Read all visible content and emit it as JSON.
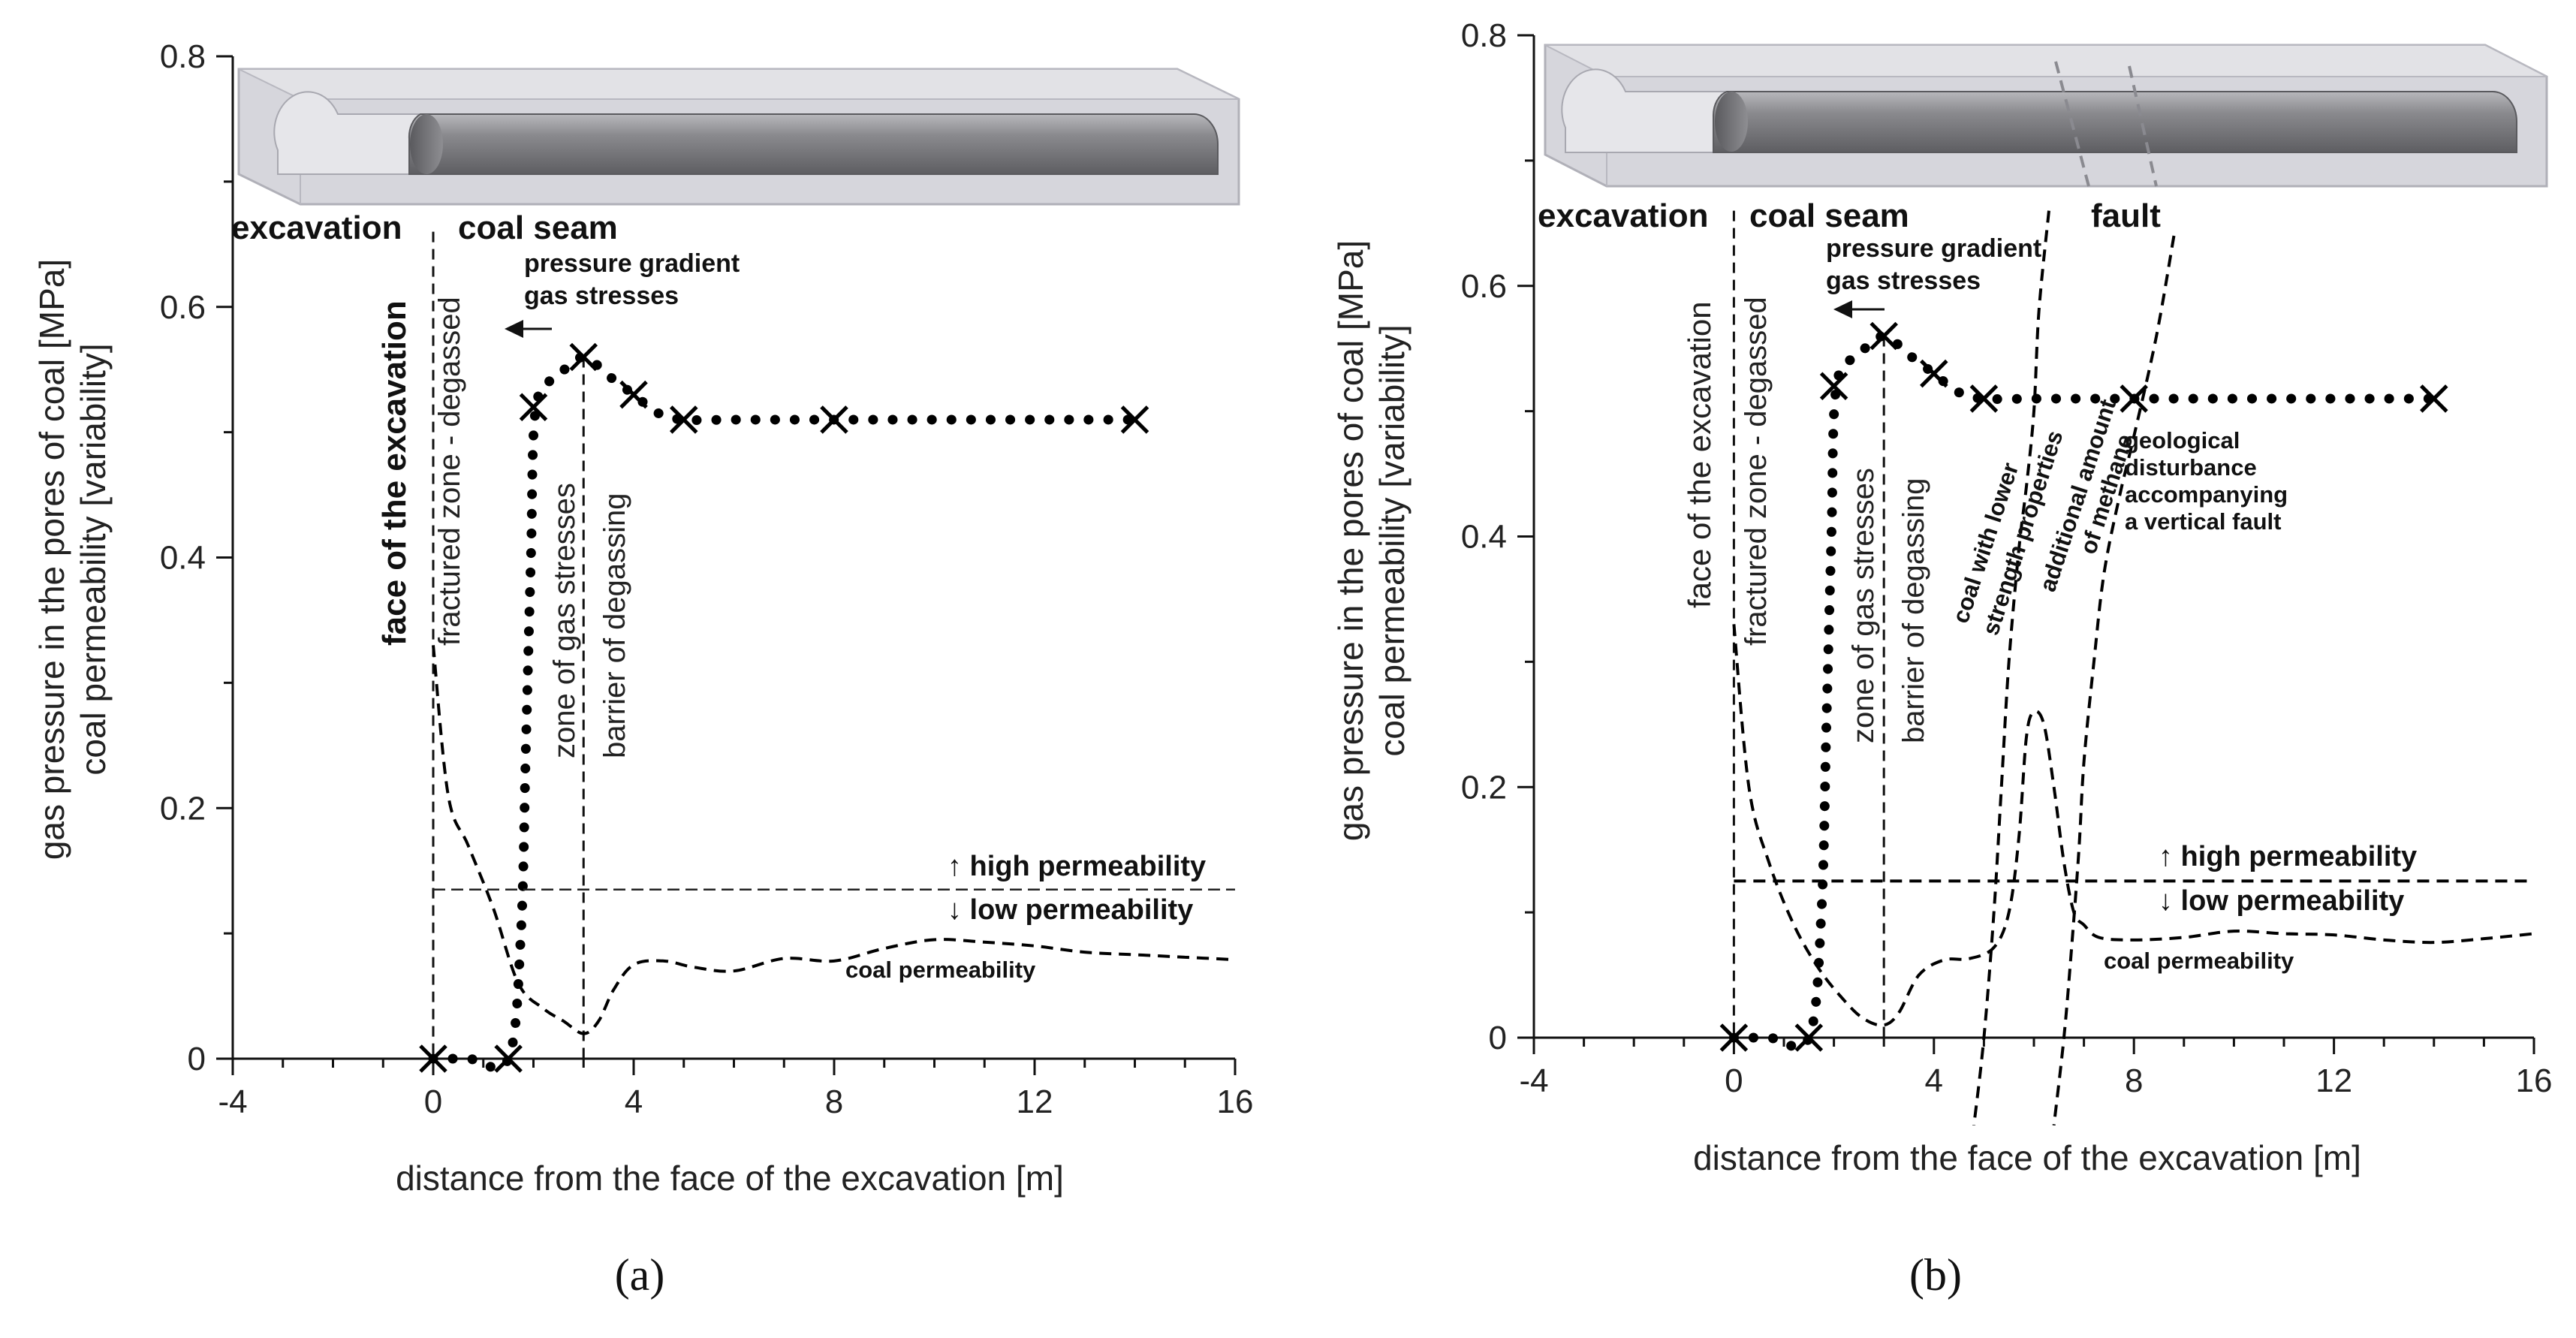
{
  "chart_data": [
    {
      "panel": "a",
      "caption": "(a)",
      "type": "line",
      "xlabel": "distance from the face of the excavation [m]",
      "ylabel_lines": [
        "gas pressure in the pores of coal [MPa]",
        "coal permeability [variability]"
      ],
      "xlim": [
        -4,
        16
      ],
      "ylim": [
        0,
        0.8
      ],
      "x_ticks": [
        -4,
        0,
        4,
        8,
        12,
        16
      ],
      "y_ticks": [
        0,
        0.2,
        0.4,
        0.6,
        0.8
      ],
      "y_tick_labels": [
        "0",
        "0.2",
        "0.4",
        "0.6",
        "0.8"
      ],
      "series": [
        {
          "name": "gas pressure",
          "style": "dotted",
          "x": [
            0,
            0.7,
            1.5,
            1.75,
            1.85,
            1.95,
            2.05,
            2.5,
            3.0,
            3.5,
            4.0,
            4.5,
            5.0,
            6.0,
            7.0,
            8.0,
            9.0,
            10.0,
            11.0,
            12.0,
            13.0,
            14.0
          ],
          "y": [
            0,
            0,
            0,
            0.1,
            0.25,
            0.4,
            0.52,
            0.545,
            0.56,
            0.545,
            0.53,
            0.515,
            0.51,
            0.51,
            0.51,
            0.51,
            0.51,
            0.51,
            0.51,
            0.51,
            0.51,
            0.51
          ]
        },
        {
          "name": "measurement points",
          "style": "x-markers",
          "x": [
            0,
            1.5,
            2.0,
            3.0,
            4.0,
            5.0,
            8.0,
            14.0
          ],
          "y": [
            0,
            0,
            0.52,
            0.56,
            0.53,
            0.51,
            0.51,
            0.51
          ]
        },
        {
          "name": "coal permeability",
          "style": "dashed",
          "x": [
            0,
            0.3,
            0.7,
            1.2,
            1.7,
            2.2,
            2.6,
            3.0,
            3.3,
            3.6,
            4.0,
            4.6,
            5.2,
            6.0,
            7.0,
            8.0,
            9.0,
            10.0,
            11.0,
            12.0,
            13.0,
            14.0,
            15.0,
            16.0
          ],
          "y": [
            0.33,
            0.21,
            0.17,
            0.12,
            0.06,
            0.04,
            0.03,
            0.02,
            0.03,
            0.055,
            0.075,
            0.078,
            0.073,
            0.07,
            0.08,
            0.078,
            0.088,
            0.095,
            0.093,
            0.09,
            0.085,
            0.083,
            0.081,
            0.079
          ]
        },
        {
          "name": "permeability threshold",
          "style": "thin-dashed",
          "x": [
            0,
            16
          ],
          "y": [
            0.135,
            0.135
          ]
        }
      ],
      "vlines": [
        {
          "name": "face of the excavation",
          "x": 0,
          "y_top": 0.66
        },
        {
          "name": "barrier of degassing",
          "x": 3.0,
          "y_top": 0.56
        }
      ],
      "labels": {
        "excavation": "excavation",
        "coal_seam": "coal seam",
        "pressure_gradient": "pressure gradient",
        "gas_stresses": "gas stresses",
        "face": "face of the excavation",
        "fractured": "fractured zone - degassed",
        "zone_gas": "zone of gas stresses",
        "barrier": "barrier of degassing",
        "high_perm": "↑ high permeability",
        "low_perm": "↓ low permeability",
        "coal_perm": "coal permeability"
      }
    },
    {
      "panel": "b",
      "caption": "(b)",
      "type": "line",
      "xlabel": "distance from the face of the excavation [m]",
      "ylabel_lines": [
        "gas pressure in the pores of coal [MPa]",
        "coal permeability [variability]"
      ],
      "xlim": [
        -4,
        16
      ],
      "ylim": [
        0,
        0.8
      ],
      "x_ticks": [
        -4,
        0,
        4,
        8,
        12,
        16
      ],
      "y_ticks": [
        0,
        0.2,
        0.4,
        0.6,
        0.8
      ],
      "y_tick_labels": [
        "0",
        "0.2",
        "0.4",
        "0.6",
        "0.8"
      ],
      "series": [
        {
          "name": "gas pressure",
          "style": "dotted",
          "x": [
            0,
            0.7,
            1.5,
            1.75,
            1.85,
            1.95,
            2.05,
            2.5,
            3.0,
            3.5,
            4.0,
            4.5,
            5.0,
            6.0,
            7.0,
            8.0,
            9.0,
            10.0,
            11.0,
            12.0,
            13.0,
            14.0
          ],
          "y": [
            0,
            0,
            0,
            0.1,
            0.25,
            0.4,
            0.52,
            0.545,
            0.56,
            0.545,
            0.53,
            0.515,
            0.51,
            0.51,
            0.51,
            0.51,
            0.51,
            0.51,
            0.51,
            0.51,
            0.51,
            0.51
          ]
        },
        {
          "name": "measurement points",
          "style": "x-markers",
          "x": [
            0,
            1.5,
            2.0,
            3.0,
            4.0,
            5.0,
            8.0,
            14.0
          ],
          "y": [
            0,
            0,
            0.52,
            0.56,
            0.53,
            0.51,
            0.51,
            0.51
          ]
        },
        {
          "name": "coal permeability",
          "style": "dashed",
          "x": [
            0,
            0.3,
            0.7,
            1.2,
            1.7,
            2.2,
            2.6,
            3.0,
            3.3,
            3.7,
            4.2,
            4.7,
            5.2,
            5.5,
            5.7,
            5.85,
            6.0,
            6.2,
            6.4,
            6.6,
            6.8,
            7.0,
            7.3,
            8.0,
            9.0,
            10.0,
            11.0,
            12.0,
            13.0,
            14.0,
            15.0,
            16.0
          ],
          "y": [
            0.33,
            0.2,
            0.14,
            0.09,
            0.055,
            0.03,
            0.015,
            0.01,
            0.02,
            0.05,
            0.062,
            0.063,
            0.072,
            0.1,
            0.16,
            0.24,
            0.26,
            0.25,
            0.2,
            0.14,
            0.1,
            0.09,
            0.08,
            0.078,
            0.08,
            0.085,
            0.083,
            0.082,
            0.078,
            0.076,
            0.079,
            0.083
          ]
        },
        {
          "name": "permeability threshold",
          "style": "dashed",
          "x": [
            0,
            16
          ],
          "y": [
            0.125,
            0.125
          ]
        },
        {
          "name": "fault trace left",
          "style": "dashed",
          "x": [
            6.3,
            6.1,
            6.0,
            5.85,
            5.7,
            5.5,
            5.35,
            5.2,
            5.0,
            4.8
          ],
          "y": [
            0.66,
            0.58,
            0.5,
            0.44,
            0.39,
            0.3,
            0.2,
            0.1,
            0.0,
            -0.07
          ]
        },
        {
          "name": "fault trace right",
          "style": "dashed",
          "x": [
            8.8,
            8.45,
            8.0,
            7.7,
            7.4,
            7.2,
            7.0,
            6.9,
            6.75,
            6.6,
            6.4
          ],
          "y": [
            0.64,
            0.56,
            0.48,
            0.43,
            0.37,
            0.3,
            0.22,
            0.15,
            0.07,
            0.0,
            -0.07
          ]
        }
      ],
      "vlines": [
        {
          "name": "face of the excavation",
          "x": 0,
          "y_top": 0.66
        },
        {
          "name": "barrier of degassing",
          "x": 3.0,
          "y_top": 0.56
        }
      ],
      "labels": {
        "excavation": "excavation",
        "coal_seam": "coal seam",
        "fault": "fault",
        "pressure_gradient": "pressure gradient",
        "gas_stresses": "gas stresses",
        "face": "face of the excavation",
        "fractured": "fractured zone - degassed",
        "zone_gas": "zone of gas stresses",
        "barrier": "barrier of degassing",
        "lower_strength_1": "coal with lower",
        "lower_strength_2": "strength properties",
        "methane_1": "additional amount",
        "methane_2": "of methane",
        "geo_1": "geological",
        "geo_2": "disturbance",
        "geo_3": "accompanying",
        "geo_4": "a vertical fault",
        "high_perm": "↑ high permeability",
        "low_perm": "↓ low permeability",
        "coal_perm": "coal permeability"
      }
    }
  ]
}
